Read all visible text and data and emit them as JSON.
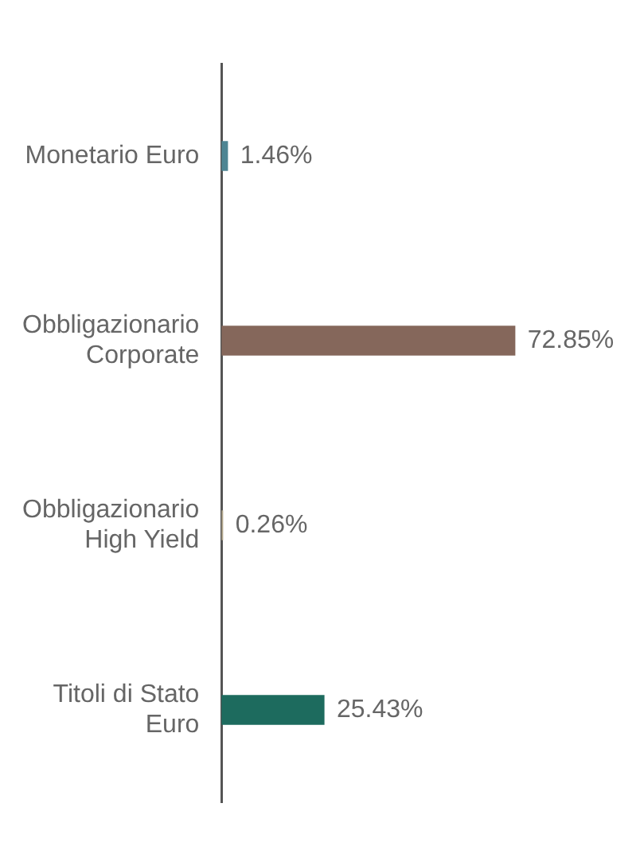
{
  "chart_data": {
    "type": "bar",
    "orientation": "horizontal",
    "categories": [
      "Monetario Euro",
      "Obbligazionario Corporate",
      "Obbligazionario High Yield",
      "Titoli di Stato Euro"
    ],
    "values": [
      1.46,
      72.85,
      0.26,
      25.43
    ],
    "colors": [
      "#4e8593",
      "#85675b",
      "#b0a48a",
      "#1d6b5e"
    ],
    "value_labels": [
      "1.46%",
      "72.85%",
      "0.26%",
      "25.43%"
    ],
    "legend": false
  }
}
